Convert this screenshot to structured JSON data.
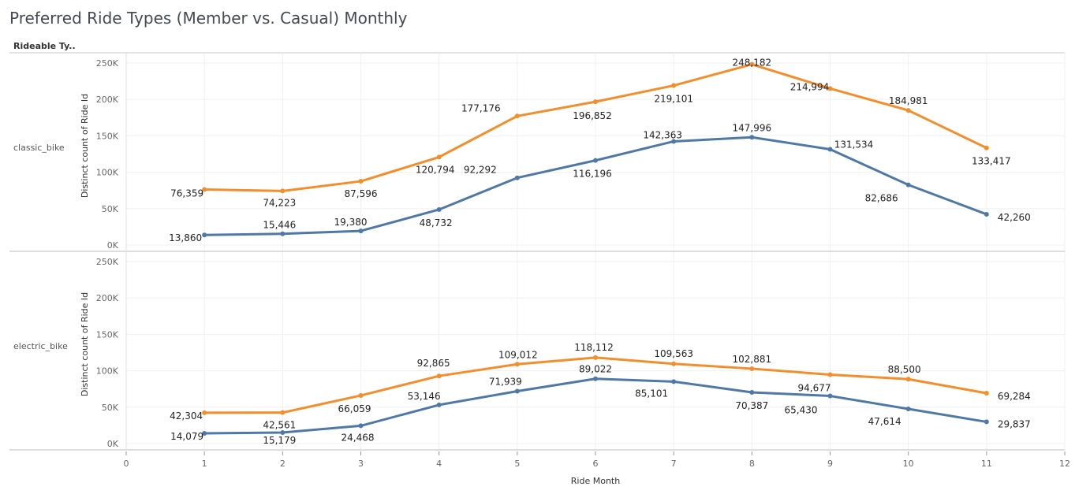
{
  "title": "Preferred Ride Types (Member vs. Casual) Monthly",
  "row_header": "Rideable Ty..",
  "colors": {
    "orange": "#f28e2b",
    "blue": "#4e79a7"
  },
  "chart_data": {
    "type": "line",
    "title": "Preferred Ride Types (Member vs. Casual) Monthly",
    "xlabel": "Ride Month",
    "ylabel": "Distinct count of Ride Id",
    "xlim": [
      0,
      12
    ],
    "x_ticks": [
      "0",
      "1",
      "2",
      "3",
      "4",
      "5",
      "6",
      "7",
      "8",
      "9",
      "10",
      "11",
      "12"
    ],
    "ylim": [
      0,
      260000
    ],
    "y_ticks": [
      {
        "value": 0,
        "label": "0K"
      },
      {
        "value": 50000,
        "label": "50K"
      },
      {
        "value": 100000,
        "label": "100K"
      },
      {
        "value": 150000,
        "label": "150K"
      },
      {
        "value": 200000,
        "label": "200K"
      },
      {
        "value": 250000,
        "label": "250K"
      }
    ],
    "grid": true,
    "legend": "none",
    "panels": [
      {
        "name": "classic_bike",
        "series": [
          {
            "color": "#f28e2b",
            "x": [
              1,
              2,
              3,
              4,
              5,
              6,
              7,
              8,
              9,
              10,
              11
            ],
            "values": [
              76359,
              74223,
              87596,
              120794,
              177176,
              196852,
              219101,
              248182,
              214994,
              184981,
              133417
            ],
            "labels": [
              "76,359",
              "74,223",
              "87,596",
              "120,794",
              "177,176",
              "196,852",
              "219,101",
              "248,182",
              "214,994",
              "184,981",
              "133,417"
            ]
          },
          {
            "color": "#4e79a7",
            "x": [
              1,
              2,
              3,
              4,
              5,
              6,
              7,
              8,
              9,
              10,
              11
            ],
            "values": [
              13860,
              15446,
              19380,
              48732,
              92292,
              116196,
              142363,
              147996,
              131534,
              82686,
              42260
            ],
            "labels": [
              "13,860",
              "15,446",
              "19,380",
              "48,732",
              "92,292",
              "116,196",
              "142,363",
              "147,996",
              "131,534",
              "82,686",
              "42,260"
            ]
          }
        ]
      },
      {
        "name": "electric_bike",
        "series": [
          {
            "color": "#f28e2b",
            "x": [
              1,
              2,
              3,
              4,
              5,
              6,
              7,
              8,
              9,
              10,
              11
            ],
            "values": [
              42304,
              42561,
              66059,
              92865,
              109012,
              118112,
              109563,
              102881,
              94677,
              88500,
              69284
            ],
            "labels": [
              "42,304",
              "42,561",
              "66,059",
              "92,865",
              "109,012",
              "118,112",
              "109,563",
              "102,881",
              "94,677",
              "88,500",
              "69,284"
            ]
          },
          {
            "color": "#4e79a7",
            "x": [
              1,
              2,
              3,
              4,
              5,
              6,
              7,
              8,
              9,
              10,
              11
            ],
            "values": [
              14079,
              15179,
              24468,
              53146,
              71939,
              89022,
              85101,
              70387,
              65430,
              47614,
              29837
            ],
            "labels": [
              "14,079",
              "15,179",
              "24,468",
              "53,146",
              "71,939",
              "89,022",
              "85,101",
              "70,387",
              "65,430",
              "47,614",
              "29,837"
            ]
          }
        ]
      }
    ]
  }
}
